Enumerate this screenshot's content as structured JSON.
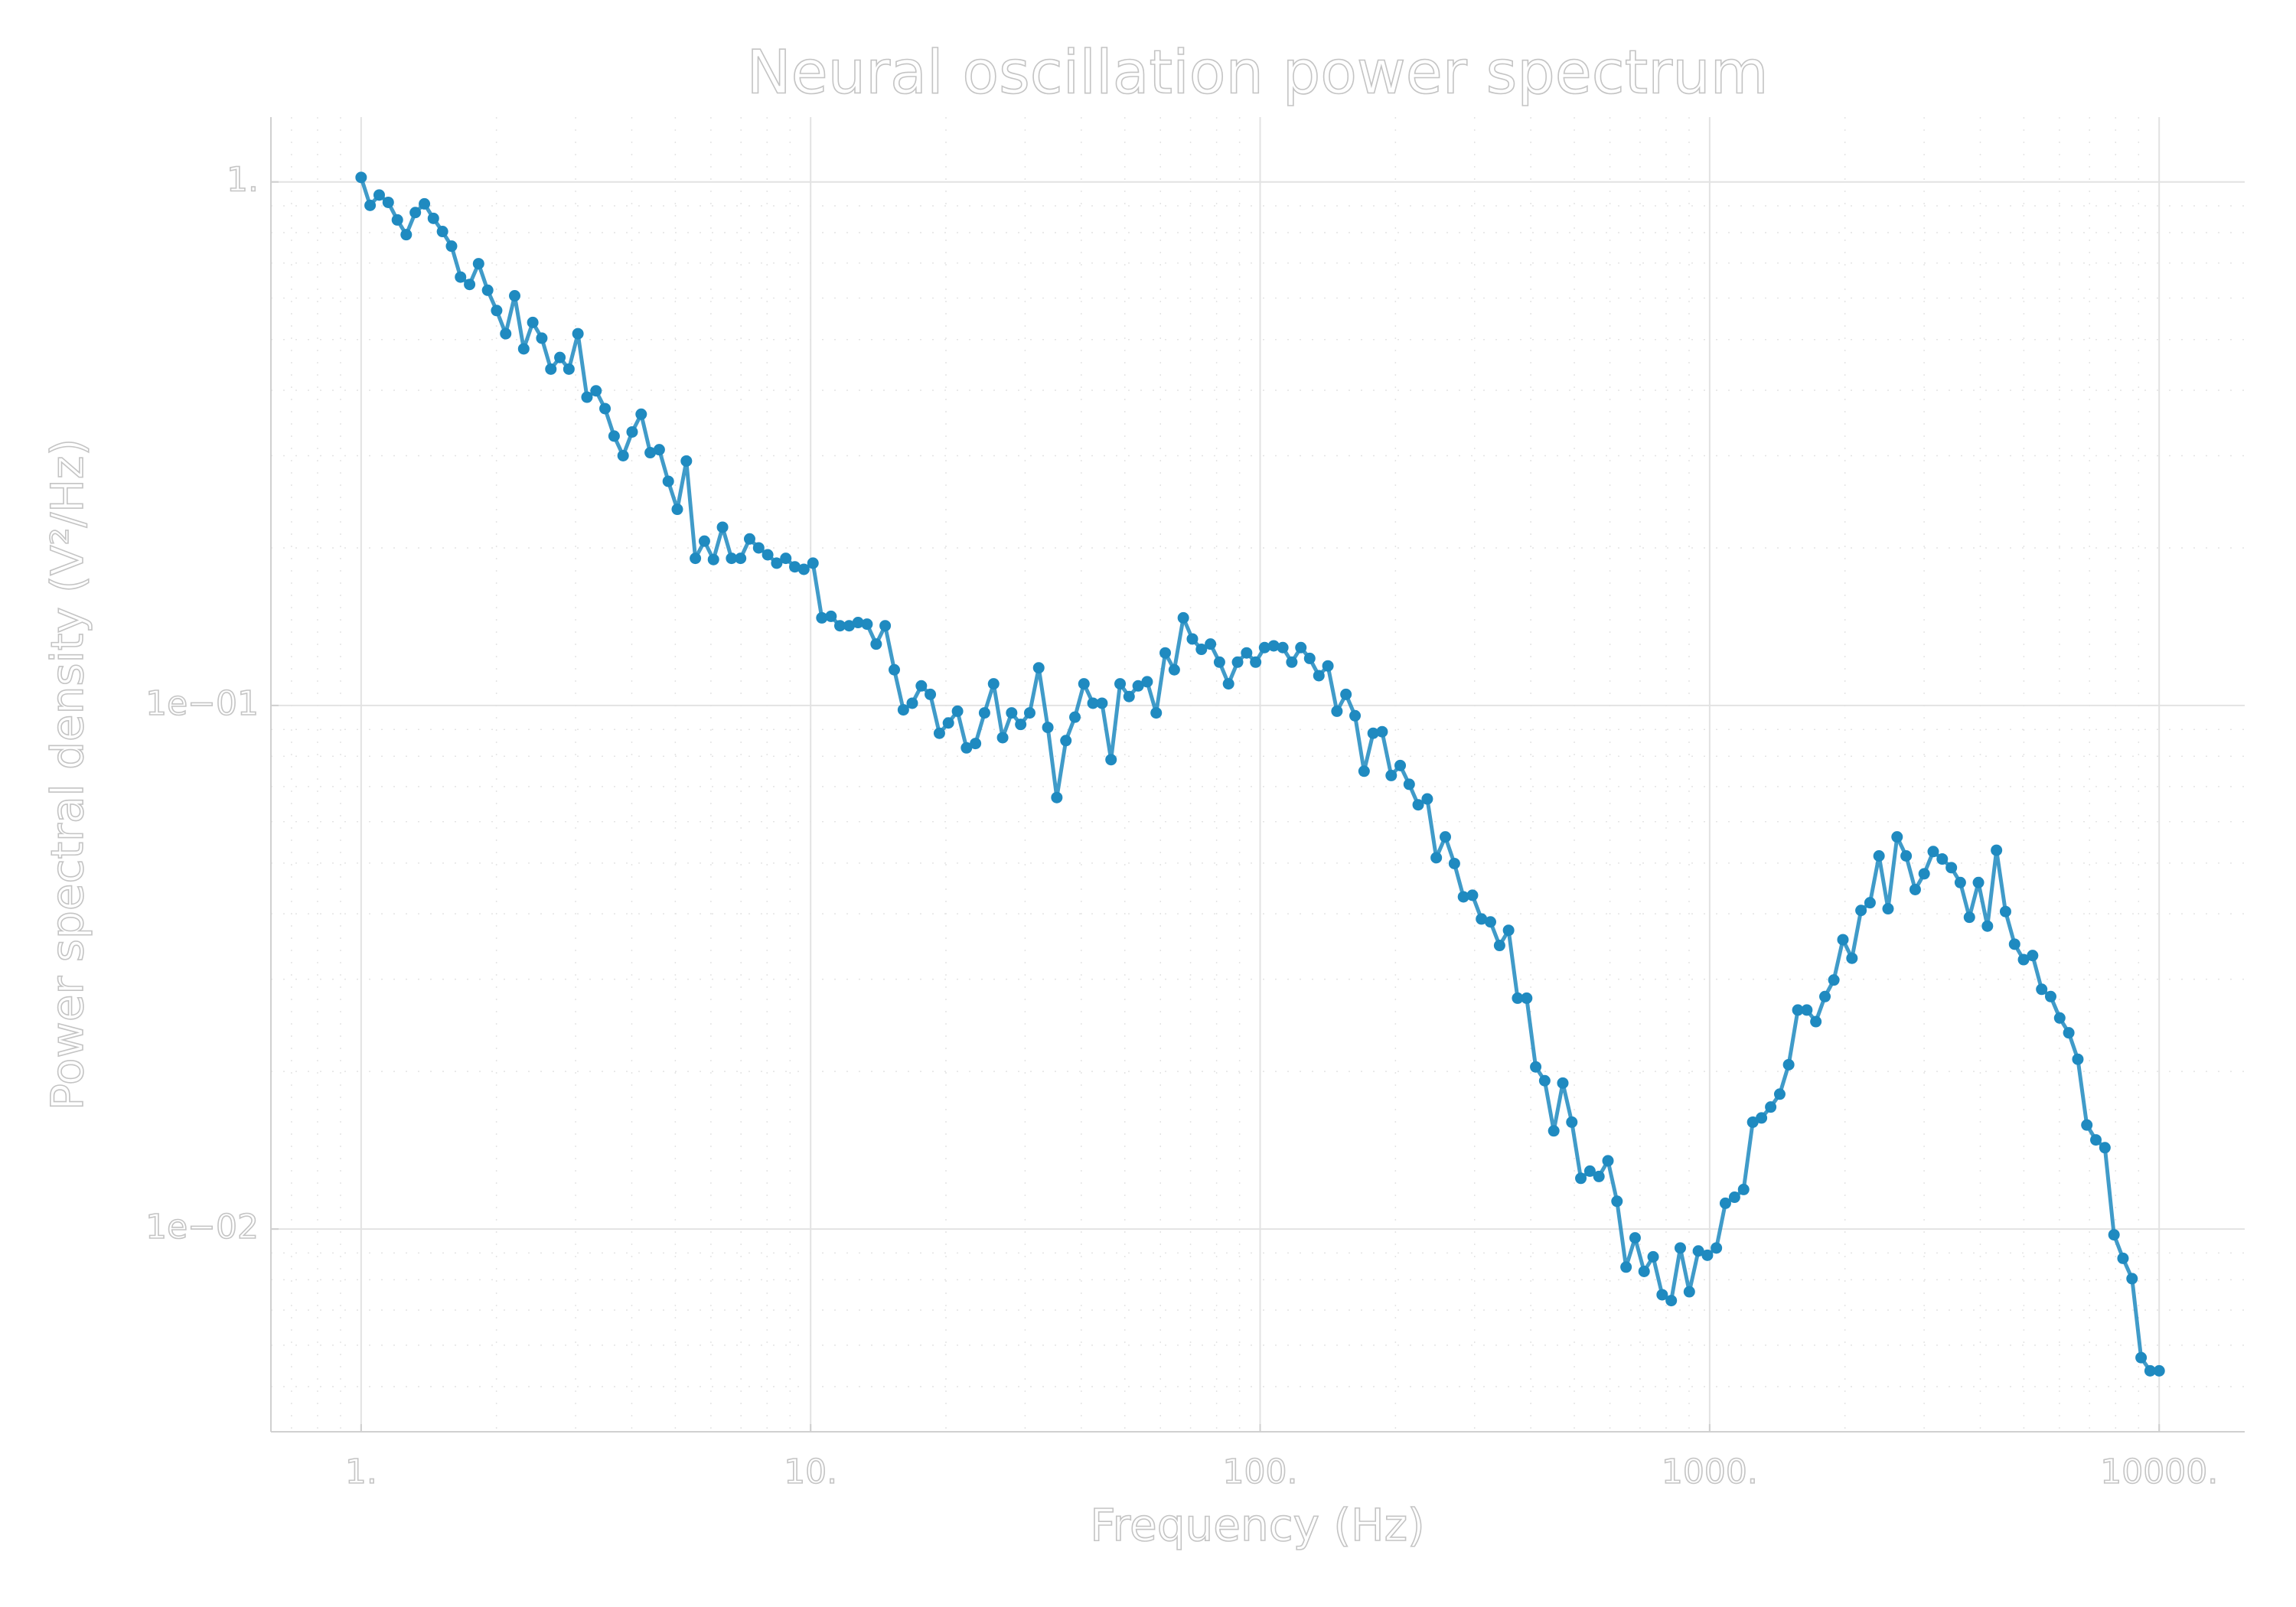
{
  "chart_data": {
    "type": "line",
    "title": "Neural oscillation power spectrum",
    "xlabel": "Frequency (Hz)",
    "ylabel": "Power spectral density (V²/Hz)",
    "xscale": "log",
    "yscale": "log",
    "grid": true,
    "minor_grid": true,
    "color": "#1f8ac0",
    "xlim": [
      0.63,
      15500
    ],
    "ylim": [
      0.0041,
      1.33
    ],
    "xticks": [
      {
        "value": 1,
        "label": "1."
      },
      {
        "value": 10,
        "label": "10."
      },
      {
        "value": 100,
        "label": "100."
      },
      {
        "value": 1000,
        "label": "1000."
      },
      {
        "value": 10000,
        "label": "10000."
      }
    ],
    "yticks": [
      {
        "value": 0.01,
        "label": "1e−02"
      },
      {
        "value": 0.1,
        "label": "1e−01"
      },
      {
        "value": 1,
        "label": "1."
      }
    ],
    "x": [
      1,
      1.047,
      1.097,
      1.149,
      1.204,
      1.26,
      1.32,
      1.383,
      1.448,
      1.517,
      1.589,
      1.664,
      1.743,
      1.825,
      1.912,
      2.002,
      2.097,
      2.196,
      2.3,
      2.409,
      2.523,
      2.643,
      2.768,
      2.899,
      3.036,
      3.18,
      3.331,
      3.488,
      3.654,
      3.827,
      4.008,
      4.198,
      4.397,
      4.605,
      4.823,
      5.051,
      5.291,
      5.541,
      5.804,
      6.079,
      6.368,
      6.669,
      6.985,
      7.316,
      7.663,
      8.026,
      8.406,
      8.805,
      9.222,
      9.659,
      10.12,
      10.59,
      11.1,
      11.62,
      12.18,
      12.75,
      13.35,
      13.99,
      14.65,
      15.35,
      16.08,
      16.83,
      17.63,
      18.46,
      19.34,
      20.25,
      21.22,
      22.22,
      23.27,
      24.37,
      25.53,
      26.74,
      28,
      29.33,
      30.72,
      32.17,
      33.7,
      35.29,
      36.97,
      38.72,
      40.55,
      42.47,
      44.48,
      46.59,
      48.8,
      51.1,
      53.53,
      56.06,
      58.72,
      61.5,
      64.42,
      67.47,
      70.67,
      74.02,
      77.53,
      81.2,
      85.04,
      89.08,
      93.3,
      97.72,
      102.3,
      107.2,
      112.3,
      117.6,
      123.2,
      128.9,
      135.1,
      141.5,
      148.2,
      155.2,
      162.6,
      170.3,
      178.4,
      186.8,
      195.7,
      204.9,
      214.6,
      224.7,
      235.4,
      246.5,
      258.2,
      270.5,
      283.3,
      296.7,
      310.7,
      325.4,
      340.9,
      357,
      373.9,
      391.7,
      410.2,
      429.6,
      450,
      471.3,
      493.6,
      516.9,
      541.5,
      567.1,
      594,
      622.1,
      651.7,
      682.5,
      714.8,
      748.7,
      784.2,
      821.4,
      860.3,
      901.1,
      943.8,
      988.5,
      1035,
      1084,
      1136,
      1190,
      1247,
      1304,
      1367,
      1432,
      1499,
      1571,
      1645,
      1723,
      1805,
      1889,
      1979,
      2073,
      2171,
      2274,
      2381,
      2494,
      2612,
      2736,
      2866,
      3001,
      3143,
      3292,
      3449,
      3611,
      3783,
      3962,
      4149,
      4346,
      4552,
      4768,
      4993,
      5229,
      5478,
      5737,
      6009,
      6294,
      6593,
      6904,
      7231,
      7574,
      7934,
      8309,
      8703,
      9116,
      9548,
      10000
    ],
    "values": [
      1.02,
      0.902,
      0.944,
      0.914,
      0.846,
      0.793,
      0.874,
      0.908,
      0.852,
      0.804,
      0.754,
      0.658,
      0.637,
      0.698,
      0.621,
      0.568,
      0.513,
      0.606,
      0.48,
      0.539,
      0.503,
      0.439,
      0.462,
      0.439,
      0.513,
      0.388,
      0.399,
      0.369,
      0.327,
      0.3,
      0.333,
      0.36,
      0.304,
      0.308,
      0.268,
      0.237,
      0.293,
      0.191,
      0.206,
      0.19,
      0.219,
      0.191,
      0.191,
      0.208,
      0.2,
      0.194,
      0.187,
      0.191,
      0.184,
      0.182,
      0.187,
      0.147,
      0.148,
      0.142,
      0.142,
      0.144,
      0.143,
      0.131,
      0.142,
      0.117,
      0.0981,
      0.101,
      0.109,
      0.105,
      0.0885,
      0.0926,
      0.0975,
      0.083,
      0.0846,
      0.0968,
      0.11,
      0.0868,
      0.0968,
      0.092,
      0.0968,
      0.118,
      0.0908,
      0.0667,
      0.0857,
      0.095,
      0.11,
      0.101,
      0.101,
      0.0788,
      0.11,
      0.104,
      0.109,
      0.111,
      0.0968,
      0.126,
      0.117,
      0.147,
      0.134,
      0.128,
      0.131,
      0.121,
      0.11,
      0.121,
      0.126,
      0.121,
      0.129,
      0.13,
      0.129,
      0.121,
      0.129,
      0.123,
      0.114,
      0.119,
      0.0975,
      0.105,
      0.0956,
      0.0749,
      0.0885,
      0.0891,
      0.0735,
      0.0768,
      0.0707,
      0.0646,
      0.0663,
      0.0512,
      0.0561,
      0.0499,
      0.0431,
      0.0434,
      0.0391,
      0.0386,
      0.0348,
      0.0372,
      0.0276,
      0.0276,
      0.0204,
      0.0192,
      0.0154,
      0.019,
      0.016,
      0.0125,
      0.0129,
      0.0126,
      0.0135,
      0.0113,
      0.00846,
      0.00962,
      0.0083,
      0.00885,
      0.00749,
      0.0073,
      0.0092,
      0.00759,
      0.00908,
      0.00891,
      0.0092,
      0.0112,
      0.0115,
      0.0119,
      0.016,
      0.0163,
      0.0171,
      0.0181,
      0.0206,
      0.0262,
      0.0262,
      0.0249,
      0.0278,
      0.0299,
      0.0357,
      0.0329,
      0.0406,
      0.042,
      0.0516,
      0.0409,
      0.0561,
      0.0516,
      0.0445,
      0.0477,
      0.0526,
      0.0509,
      0.049,
      0.0459,
      0.0394,
      0.0459,
      0.0379,
      0.0529,
      0.0404,
      0.035,
      0.0327,
      0.0333,
      0.0287,
      0.0278,
      0.0253,
      0.0237,
      0.0211,
      0.0158,
      0.0148,
      0.0143,
      0.00975,
      0.00879,
      0.00804,
      0.00568,
      0.00536,
      0.00536
    ]
  }
}
